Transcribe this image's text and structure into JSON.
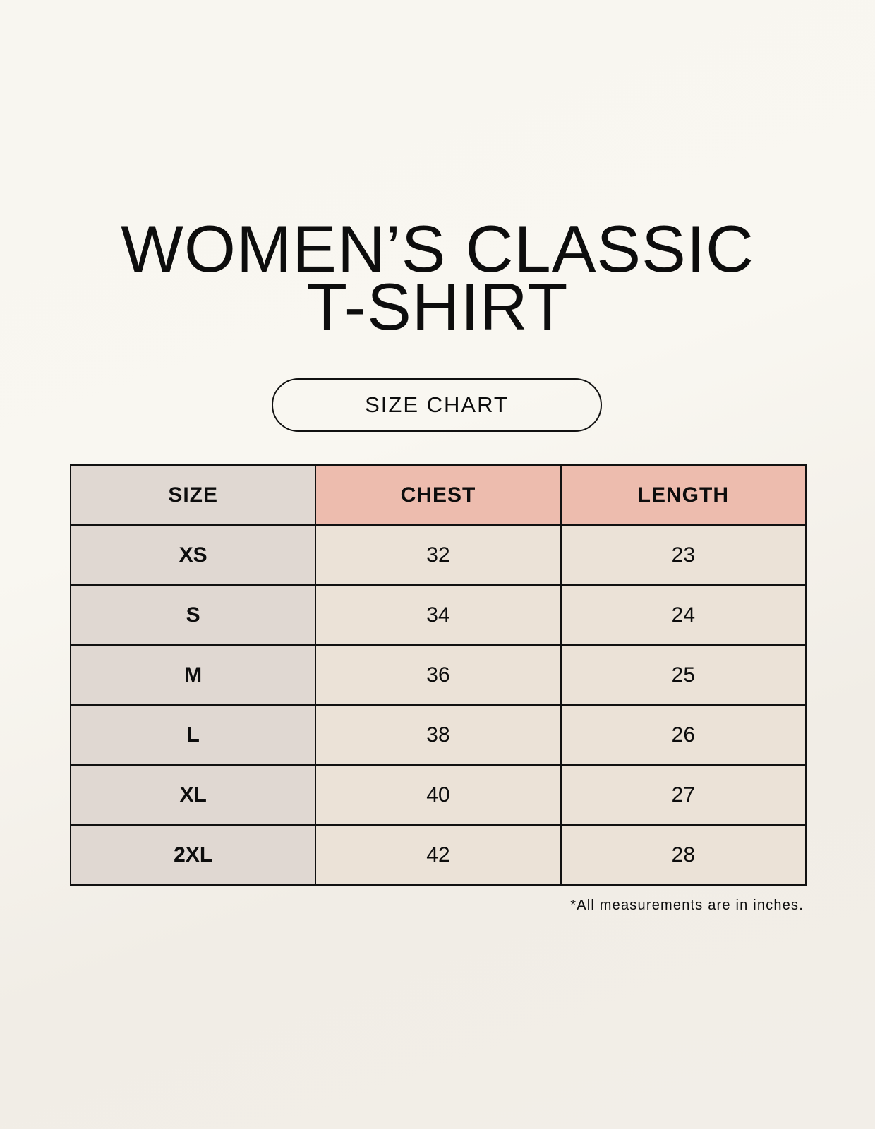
{
  "title_line1": "WOMEN’S CLASSIC",
  "title_line2": "T-SHIRT",
  "badge": "SIZE CHART",
  "table": {
    "headers": [
      "SIZE",
      "CHEST",
      "LENGTH"
    ],
    "rows": [
      [
        "XS",
        "32",
        "23"
      ],
      [
        "S",
        "34",
        "24"
      ],
      [
        "M",
        "36",
        "25"
      ],
      [
        "L",
        "38",
        "26"
      ],
      [
        "XL",
        "40",
        "27"
      ],
      [
        "2XL",
        "42",
        "28"
      ]
    ]
  },
  "footnote": "*All measurements are in inches.",
  "colors": {
    "size_column": "#e0d8d2",
    "header_accent": "#edbcae",
    "value_cells": "#ebe2d7"
  }
}
